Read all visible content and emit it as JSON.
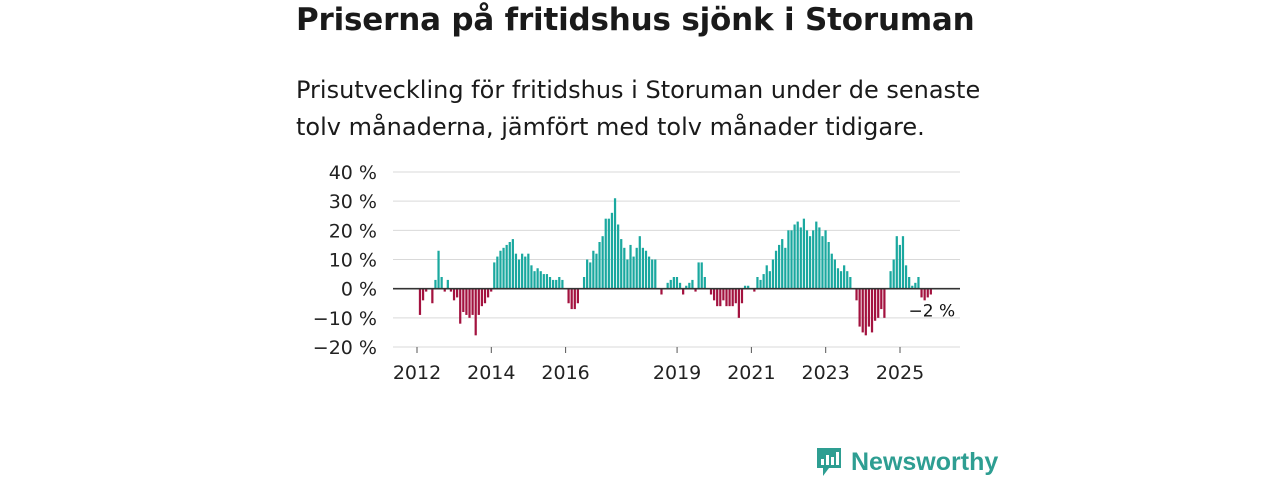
{
  "header": {
    "title": "Priserna på fritidshus sjönk i Storuman",
    "subtitle": "Prisutveckling för fritidshus i Storuman under de senaste tolv månaderna, jämfört med tolv månader tidigare."
  },
  "brand": {
    "name": "Newsworthy"
  },
  "colors": {
    "positive": "#1aa89f",
    "negative": "#a3123f",
    "grid": "#d9d9d9",
    "zero": "#333333",
    "brand": "#2e9e92"
  },
  "chart_data": {
    "type": "bar",
    "title": "Priserna på fritidshus sjönk i Storuman",
    "xlabel": "",
    "ylabel": "",
    "ylim": [
      -20,
      40
    ],
    "yticks": [
      40,
      30,
      20,
      10,
      0,
      -10,
      -20
    ],
    "ytick_labels": [
      "40 %",
      "30 %",
      "20 %",
      "10 %",
      "0 %",
      "−10 %",
      "−20 %"
    ],
    "xticks": [
      {
        "label": "2012",
        "year": 2012.0
      },
      {
        "label": "2014",
        "year": 2014.0
      },
      {
        "label": "2016",
        "year": 2016.0
      },
      {
        "label": "2019",
        "year": 2019.0
      },
      {
        "label": "2021",
        "year": 2021.0
      },
      {
        "label": "2023",
        "year": 2023.0
      },
      {
        "label": "2025",
        "year": 2025.0
      }
    ],
    "annotation": {
      "text": "−2 %",
      "year": 2025.75,
      "value": -2
    },
    "start_year": 2012.08,
    "months_per_bar": 1,
    "values": [
      -9,
      -4,
      -1,
      0,
      -5,
      3,
      13,
      4,
      -1,
      3,
      -1,
      -4,
      -3,
      -12,
      -8,
      -9,
      -10,
      -9,
      -16,
      -9,
      -6,
      -5,
      -3,
      -1,
      9,
      11,
      13,
      14,
      15,
      16,
      17,
      12,
      10,
      12,
      11,
      12,
      8,
      6,
      7,
      6,
      5,
      5,
      4,
      3,
      3,
      4,
      3,
      0,
      -5,
      -7,
      -7,
      -5,
      0,
      4,
      10,
      9,
      13,
      12,
      16,
      18,
      24,
      24,
      26,
      31,
      22,
      17,
      14,
      10,
      15,
      11,
      14,
      18,
      14,
      13,
      11,
      10,
      10,
      0,
      -2,
      0,
      2,
      3,
      4,
      4,
      2,
      -2,
      1,
      2,
      3,
      -1,
      9,
      9,
      4,
      0,
      -2,
      -4,
      -6,
      -6,
      -4,
      -6,
      -6,
      -6,
      -5,
      -10,
      -5,
      1,
      1,
      0,
      -1,
      4,
      3,
      5,
      8,
      6,
      10,
      13,
      15,
      17,
      14,
      20,
      20,
      22,
      23,
      21,
      24,
      20,
      18,
      20,
      23,
      21,
      18,
      20,
      16,
      12,
      10,
      7,
      6,
      8,
      6,
      4,
      0,
      -4,
      -13,
      -15,
      -16,
      -13,
      -15,
      -11,
      -10,
      -7,
      -10,
      0,
      6,
      10,
      18,
      15,
      18,
      8,
      4,
      1,
      2,
      4,
      -3,
      -4,
      -3,
      -2
    ]
  }
}
